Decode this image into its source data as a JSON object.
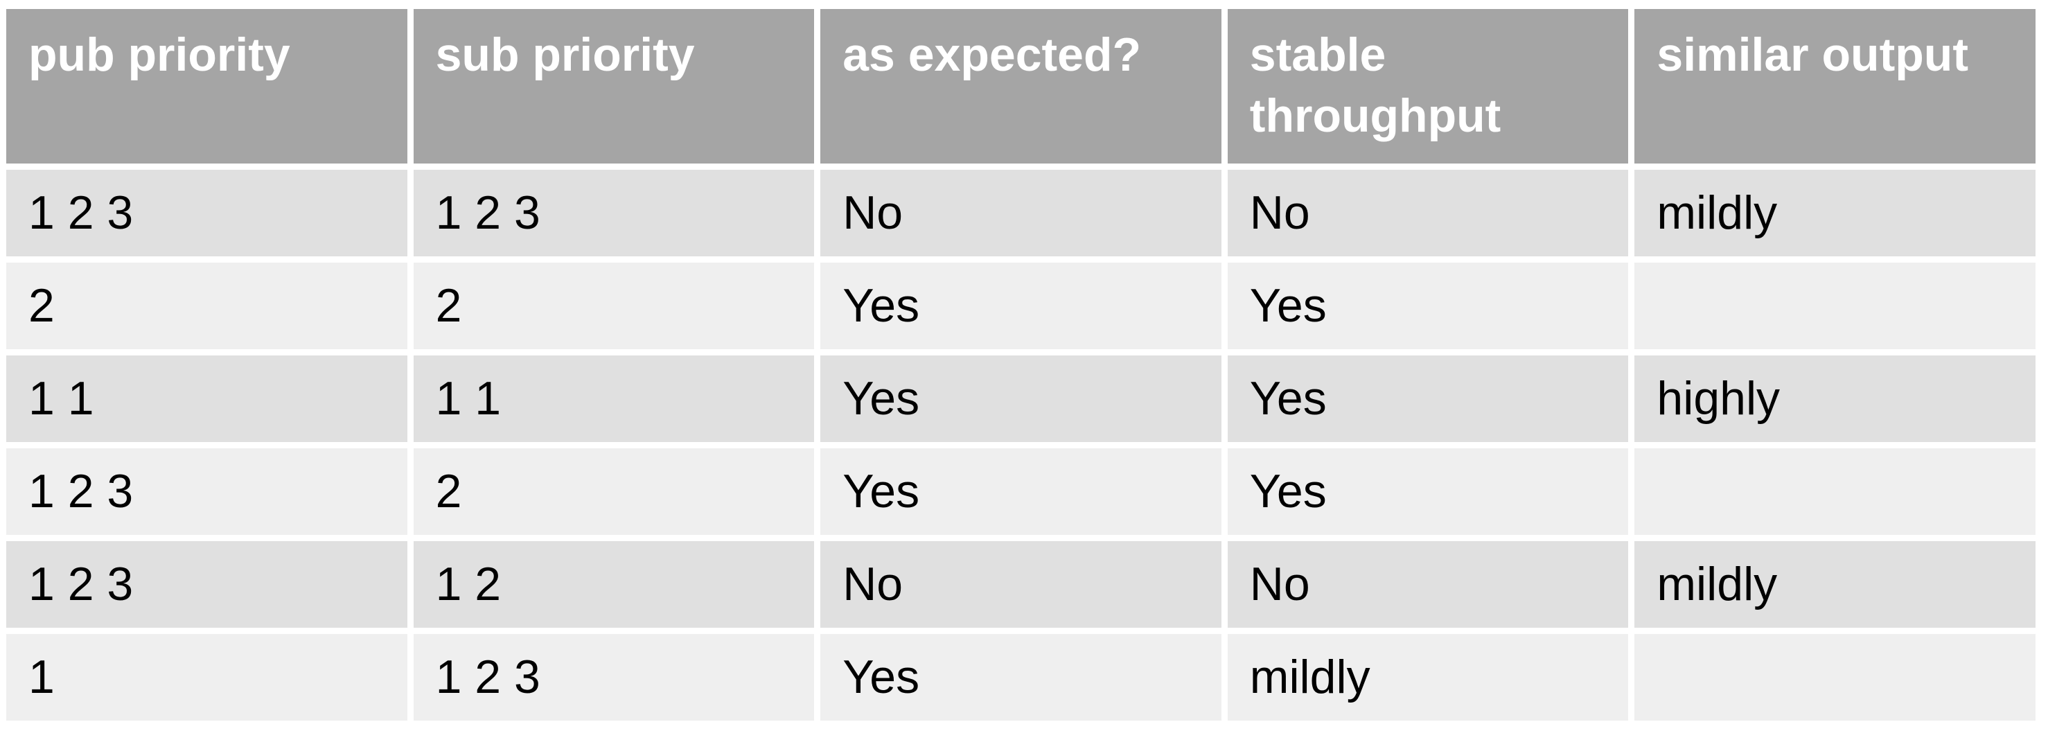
{
  "table": {
    "header": [
      "pub priority",
      "sub priority",
      "as expected?",
      "stable throughput",
      "similar output"
    ],
    "rows": [
      [
        "1 2 3",
        "1 2 3",
        "No",
        "No",
        "mildly"
      ],
      [
        "2",
        "2",
        "Yes",
        "Yes",
        null
      ],
      [
        "1 1",
        "1 1",
        "Yes",
        "Yes",
        "highly"
      ],
      [
        "1 2 3",
        "2",
        "Yes",
        "Yes",
        null
      ],
      [
        "1 2 3",
        "1 2",
        "No",
        "No",
        "mildly"
      ],
      [
        "1",
        "1 2 3",
        "Yes",
        "mildly",
        null
      ]
    ]
  }
}
